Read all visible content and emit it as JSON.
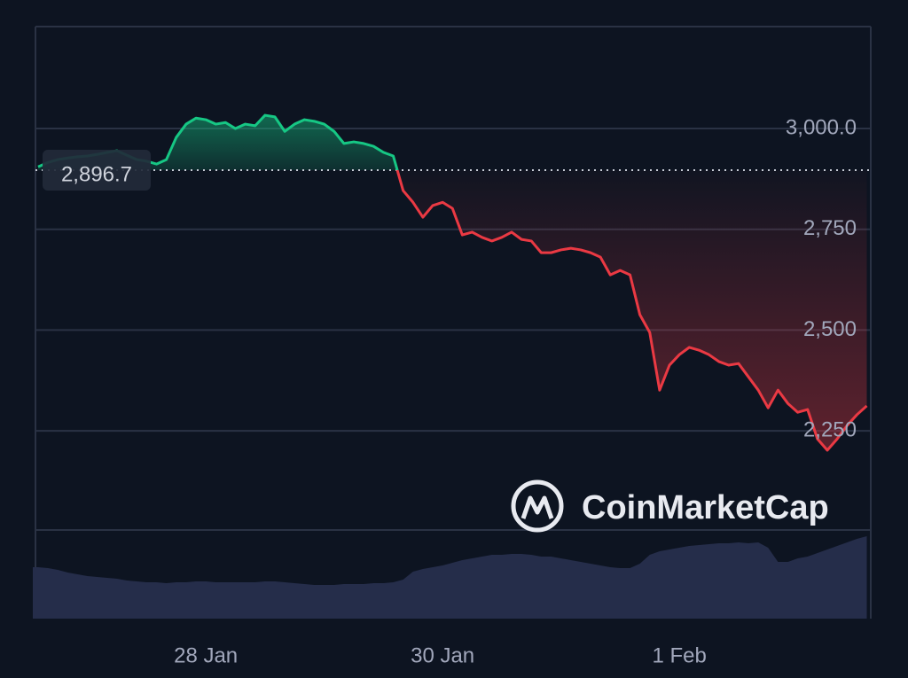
{
  "chart_data": {
    "type": "line",
    "categories": [
      null,
      null,
      null,
      null,
      null,
      null,
      null,
      null,
      null,
      null,
      null,
      null,
      null,
      null,
      null,
      null,
      null,
      "28 Jan",
      null,
      null,
      null,
      null,
      null,
      null,
      null,
      null,
      null,
      null,
      null,
      null,
      null,
      null,
      null,
      null,
      null,
      null,
      null,
      null,
      null,
      null,
      null,
      "30 Jan",
      null,
      null,
      null,
      null,
      null,
      null,
      null,
      null,
      null,
      null,
      null,
      null,
      null,
      null,
      null,
      null,
      null,
      null,
      null,
      null,
      null,
      null,
      null,
      "1 Feb",
      null,
      null,
      null,
      null,
      null,
      null,
      null,
      null,
      null,
      null,
      null,
      null,
      null,
      null,
      null,
      null,
      null,
      null,
      null
    ],
    "values": [
      2905,
      2916,
      2923,
      2927,
      2930,
      2932,
      2936,
      2941,
      2945,
      2934,
      2923,
      2919,
      2912,
      2923,
      2978,
      3011,
      3026,
      3022,
      3011,
      3015,
      3000,
      3011,
      3007,
      3033,
      3029,
      2993,
      3011,
      3022,
      3018,
      3011,
      2993,
      2963,
      2967,
      2963,
      2956,
      2941,
      2932,
      2846,
      2817,
      2780,
      2809,
      2817,
      2802,
      2736,
      2743,
      2730,
      2721,
      2730,
      2743,
      2725,
      2721,
      2692,
      2692,
      2699,
      2703,
      2699,
      2692,
      2681,
      2637,
      2648,
      2637,
      2538,
      2494,
      2351,
      2413,
      2439,
      2457,
      2450,
      2439,
      2422,
      2413,
      2417,
      2384,
      2351,
      2307,
      2351,
      2318,
      2296,
      2303,
      2230,
      2202,
      2230,
      2263,
      2290,
      2312
    ],
    "up_color": "#16c784",
    "down_color": "#ea3943",
    "reference": {
      "value": 2896.7,
      "label": "2,896.7"
    },
    "ylim": [
      2004,
      3253
    ],
    "yticks": [
      {
        "value": 3000,
        "label": "3,000.0"
      },
      {
        "value": 2750,
        "label": "2,750"
      },
      {
        "value": 2500,
        "label": "2,500"
      },
      {
        "value": 2250,
        "label": "2,250"
      }
    ],
    "grid": true,
    "volume": {
      "color": "#252d4a",
      "ylim": [
        0,
        100
      ],
      "values": [
        58,
        57,
        55,
        52,
        50,
        48,
        47,
        46,
        45,
        43,
        42,
        41,
        41,
        40,
        41,
        41,
        42,
        42,
        41,
        41,
        41,
        41,
        41,
        42,
        42,
        41,
        40,
        39,
        38,
        38,
        38,
        39,
        39,
        39,
        40,
        40,
        41,
        44,
        53,
        56,
        58,
        60,
        63,
        66,
        68,
        70,
        72,
        72,
        73,
        73,
        72,
        70,
        70,
        68,
        66,
        64,
        62,
        60,
        58,
        57,
        57,
        62,
        72,
        76,
        78,
        80,
        82,
        83,
        84,
        85,
        85,
        86,
        85,
        86,
        80,
        64,
        64,
        68,
        70,
        74,
        78,
        82,
        86,
        90,
        93
      ]
    },
    "watermark": "CoinMarketCap"
  }
}
